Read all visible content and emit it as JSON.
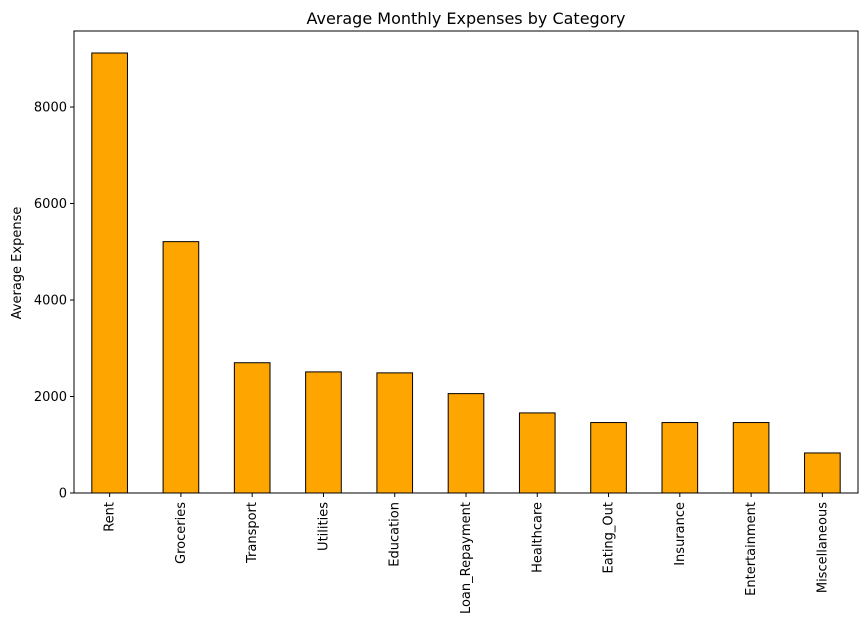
{
  "chart_data": {
    "type": "bar",
    "title": "Average Monthly Expenses by Category",
    "xlabel": "",
    "ylabel": "Average Expense",
    "categories": [
      "Rent",
      "Groceries",
      "Transport",
      "Utilities",
      "Education",
      "Loan_Repayment",
      "Healthcare",
      "Eating_Out",
      "Insurance",
      "Entertainment",
      "Miscellaneous"
    ],
    "values": [
      9120,
      5210,
      2700,
      2510,
      2490,
      2060,
      1660,
      1460,
      1460,
      1460,
      830
    ],
    "ylim": [
      0,
      9576
    ],
    "yticks": [
      0,
      2000,
      4000,
      6000,
      8000
    ],
    "ytick_labels": [
      "0",
      "2000",
      "4000",
      "6000",
      "8000"
    ],
    "bar_color": "#FFA500",
    "edge_color": "#000000",
    "grid": false,
    "legend": "none"
  }
}
